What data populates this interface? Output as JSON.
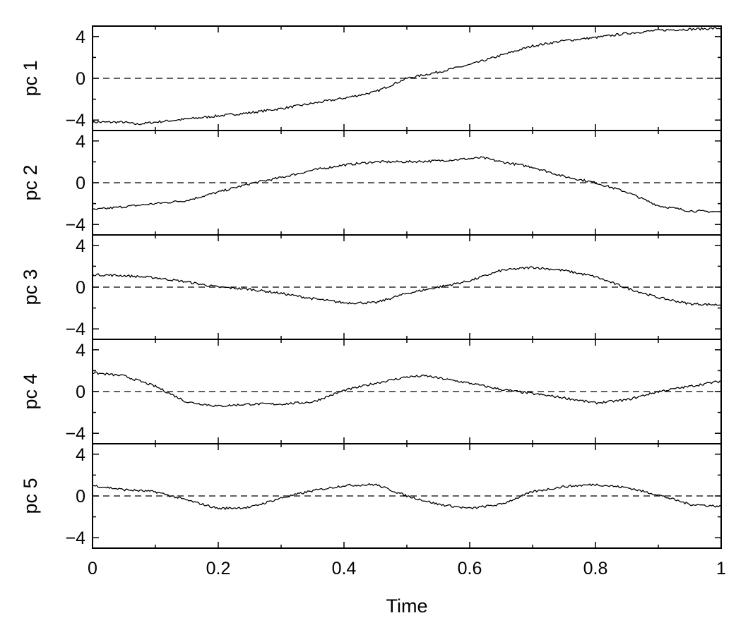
{
  "chart_data": {
    "type": "line",
    "layout": "stacked-panels",
    "xlabel": "Time",
    "xlim": [
      0,
      1
    ],
    "x_ticks": [
      0,
      0.2,
      0.4,
      0.6,
      0.8,
      1
    ],
    "x_tick_labels": [
      "0",
      "0.2",
      "0.4",
      "0.6",
      "0.8",
      "1"
    ],
    "x_minor_step": 0.1,
    "line_color": "#000000",
    "panels": [
      {
        "ylabel": "pc 1",
        "ylim": [
          -5,
          5
        ],
        "y_ticks": [
          -4,
          0,
          4
        ],
        "y_tick_labels": [
          "−4",
          "0",
          "4"
        ],
        "zero_line": "dashed",
        "series": {
          "x": [
            0,
            0.05,
            0.07,
            0.1,
            0.15,
            0.2,
            0.25,
            0.3,
            0.35,
            0.4,
            0.45,
            0.5,
            0.55,
            0.6,
            0.65,
            0.7,
            0.75,
            0.8,
            0.85,
            0.9,
            0.95,
            1.0
          ],
          "y": [
            -4.2,
            -4.2,
            -4.4,
            -4.2,
            -3.9,
            -3.6,
            -3.3,
            -2.9,
            -2.4,
            -1.9,
            -1.3,
            0.0,
            0.6,
            1.3,
            2.2,
            3.1,
            3.6,
            3.9,
            4.3,
            4.6,
            4.7,
            4.8
          ]
        }
      },
      {
        "ylabel": "pc 2",
        "ylim": [
          -5,
          5
        ],
        "y_ticks": [
          -4,
          0,
          4
        ],
        "y_tick_labels": [
          "−4",
          "0",
          "4"
        ],
        "zero_line": "dashed",
        "series": {
          "x": [
            0,
            0.05,
            0.1,
            0.15,
            0.2,
            0.25,
            0.3,
            0.35,
            0.4,
            0.45,
            0.5,
            0.55,
            0.6,
            0.62,
            0.65,
            0.7,
            0.75,
            0.8,
            0.85,
            0.9,
            0.95,
            1.0
          ],
          "y": [
            -2.6,
            -2.3,
            -2.0,
            -1.7,
            -0.9,
            -0.1,
            0.5,
            1.2,
            1.7,
            2.0,
            2.0,
            2.1,
            2.3,
            2.4,
            2.0,
            1.5,
            0.6,
            0.0,
            -0.9,
            -2.2,
            -2.7,
            -2.8
          ]
        }
      },
      {
        "ylabel": "pc 3",
        "ylim": [
          -5,
          5
        ],
        "y_ticks": [
          -4,
          0,
          4
        ],
        "y_tick_labels": [
          "−4",
          "0",
          "4"
        ],
        "zero_line": "dashed",
        "series": {
          "x": [
            0,
            0.05,
            0.1,
            0.15,
            0.2,
            0.25,
            0.3,
            0.35,
            0.4,
            0.45,
            0.5,
            0.55,
            0.6,
            0.65,
            0.7,
            0.75,
            0.8,
            0.85,
            0.9,
            0.95,
            1.0
          ],
          "y": [
            1.2,
            1.1,
            0.9,
            0.5,
            0.0,
            -0.2,
            -0.6,
            -1.1,
            -1.5,
            -1.5,
            -0.6,
            0.0,
            0.6,
            1.6,
            1.9,
            1.6,
            1.0,
            -0.1,
            -1.0,
            -1.6,
            -1.7
          ]
        }
      },
      {
        "ylabel": "pc 4",
        "ylim": [
          -5,
          5
        ],
        "y_ticks": [
          -4,
          0,
          4
        ],
        "y_tick_labels": [
          "−4",
          "0",
          "4"
        ],
        "zero_line": "dashed",
        "series": {
          "x": [
            0,
            0.05,
            0.1,
            0.15,
            0.2,
            0.25,
            0.3,
            0.35,
            0.4,
            0.45,
            0.5,
            0.53,
            0.55,
            0.6,
            0.65,
            0.7,
            0.75,
            0.8,
            0.85,
            0.9,
            0.95,
            1.0
          ],
          "y": [
            1.8,
            1.5,
            0.5,
            -1.0,
            -1.4,
            -1.2,
            -1.2,
            -1.0,
            0.1,
            0.8,
            1.4,
            1.5,
            1.3,
            0.8,
            0.2,
            -0.2,
            -0.6,
            -1.1,
            -0.8,
            0.0,
            0.5,
            1.0
          ]
        }
      },
      {
        "ylabel": "pc 5",
        "ylim": [
          -5,
          5
        ],
        "y_ticks": [
          -4,
          0,
          4
        ],
        "y_tick_labels": [
          "−4",
          "0",
          "4"
        ],
        "zero_line": "dashed",
        "series": {
          "x": [
            0,
            0.05,
            0.1,
            0.15,
            0.2,
            0.25,
            0.3,
            0.35,
            0.4,
            0.45,
            0.5,
            0.55,
            0.6,
            0.65,
            0.7,
            0.75,
            0.8,
            0.85,
            0.9,
            0.95,
            1.0
          ],
          "y": [
            1.0,
            0.6,
            0.4,
            -0.4,
            -1.2,
            -1.1,
            -0.2,
            0.5,
            1.0,
            1.1,
            0.0,
            -0.8,
            -1.2,
            -0.8,
            0.4,
            0.9,
            1.1,
            0.8,
            0.1,
            -0.8,
            -1.0
          ]
        }
      }
    ]
  }
}
